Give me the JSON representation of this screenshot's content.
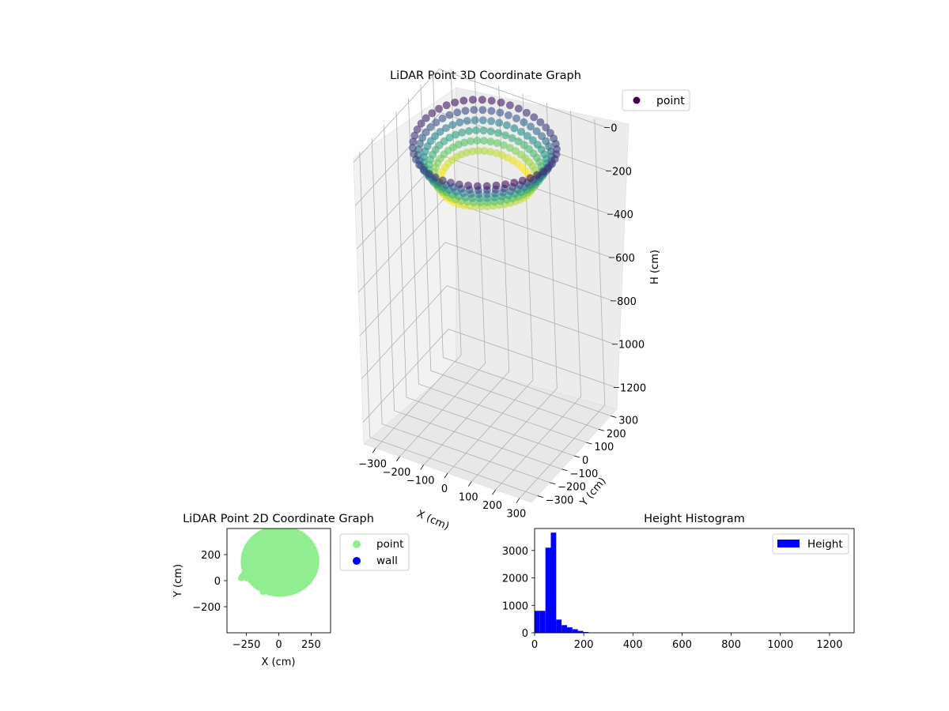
{
  "chart_data": [
    {
      "type": "scatter",
      "projection": "3d",
      "title": "LiDAR Point 3D Coordinate Graph",
      "xlabel": "X (cm)",
      "ylabel": "Y (cm)",
      "zlabel": "H (cm)",
      "xlim": [
        -350,
        350
      ],
      "ylim": [
        -350,
        350
      ],
      "zlim": [
        1300,
        -20
      ],
      "z_inverted": true,
      "x_ticks": [
        "−300",
        "−200",
        "−100",
        "0",
        "100",
        "200",
        "300"
      ],
      "y_ticks": [
        "−300",
        "−200",
        "−100",
        "0",
        "100",
        "200",
        "300"
      ],
      "z_ticks": [
        "0",
        "200",
        "400",
        "600",
        "800",
        "1000",
        "1200"
      ],
      "grid": true,
      "colormap": "viridis",
      "legend": {
        "entries": [
          {
            "label": "point",
            "color": "#440154"
          }
        ],
        "position": "upper right"
      },
      "shape": "bowl-shaped ring of points, radius approx 250 cm, heights approx 0-200 cm"
    },
    {
      "type": "scatter",
      "title": "LiDAR Point 2D Coordinate Graph",
      "xlabel": "X (cm)",
      "ylabel": "Y (cm)",
      "xlim": [
        -400,
        400
      ],
      "ylim": [
        -400,
        400
      ],
      "x_ticks": [
        "−250",
        "0",
        "250"
      ],
      "y_ticks": [
        "−200",
        "0",
        "200"
      ],
      "series": [
        {
          "name": "point",
          "color": "#90ee90",
          "shape": "filled blob, X from approx -300 to 290, Y from approx -100 to above 400"
        },
        {
          "name": "wall",
          "color": "#0000ff",
          "points": []
        }
      ],
      "legend": {
        "position": "outside right"
      }
    },
    {
      "type": "bar",
      "subtype": "histogram",
      "title": "Height Histogram",
      "xlim": [
        0,
        1300
      ],
      "ylim": [
        0,
        3800
      ],
      "x_ticks": [
        "0",
        "200",
        "400",
        "600",
        "800",
        "1000",
        "1200"
      ],
      "y_ticks": [
        "0",
        "1000",
        "2000",
        "3000"
      ],
      "bin_width": 22,
      "bin_start": 0,
      "series": [
        {
          "name": "Height",
          "color": "#0000ff",
          "values": [
            800,
            800,
            3100,
            3650,
            480,
            280,
            200,
            130,
            70,
            30
          ]
        }
      ],
      "legend": {
        "position": "upper right"
      }
    }
  ]
}
